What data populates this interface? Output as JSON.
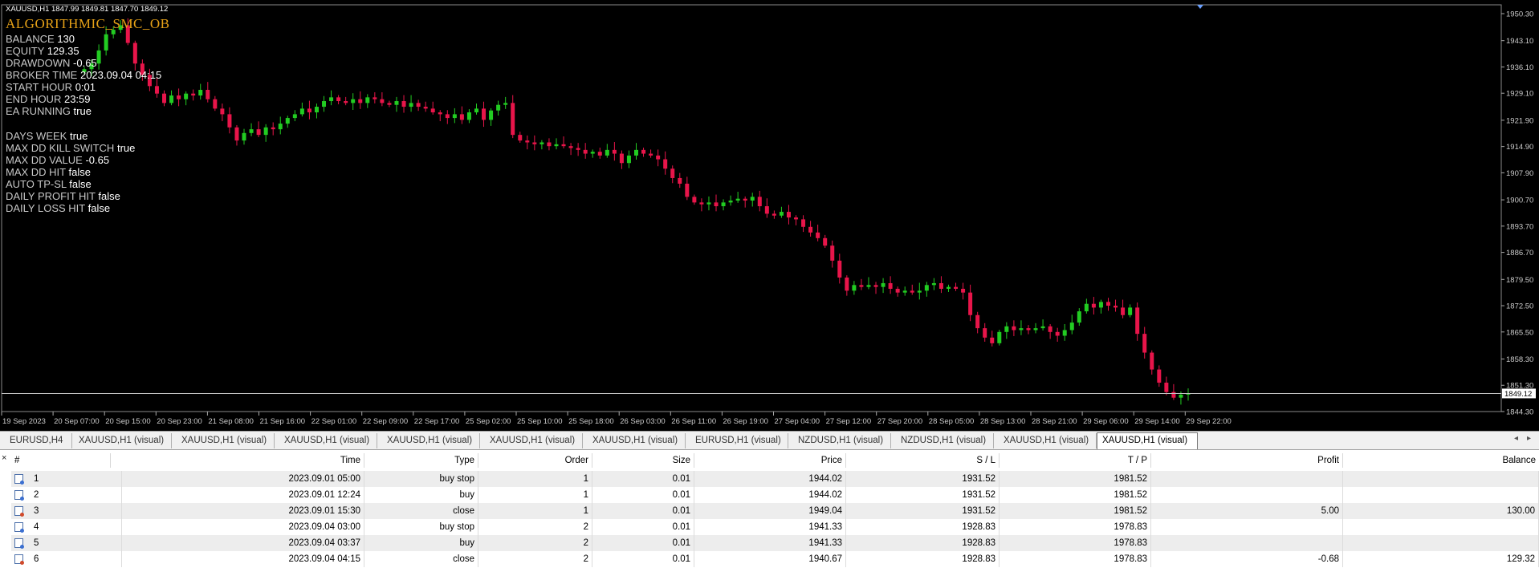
{
  "chart": {
    "symbol_info": "XAUUSD,H1  1847.99 1849.81 1847.70 1849.12",
    "ea_name": "ALGORITHMIC_SMC_OB",
    "current_price": "1849.12",
    "price_axis": [
      "1950.30",
      "1943.10",
      "1936.10",
      "1929.10",
      "1921.90",
      "1914.90",
      "1907.90",
      "1900.70",
      "1893.70",
      "1886.70",
      "1879.50",
      "1872.50",
      "1865.50",
      "1858.30",
      "1851.30",
      "1844.30"
    ],
    "time_axis": [
      "19 Sep 2023",
      "20 Sep 07:00",
      "20 Sep 15:00",
      "20 Sep 23:00",
      "21 Sep 08:00",
      "21 Sep 16:00",
      "22 Sep 01:00",
      "22 Sep 09:00",
      "22 Sep 17:00",
      "25 Sep 02:00",
      "25 Sep 10:00",
      "25 Sep 18:00",
      "26 Sep 03:00",
      "26 Sep 11:00",
      "26 Sep 19:00",
      "27 Sep 04:00",
      "27 Sep 12:00",
      "27 Sep 20:00",
      "28 Sep 05:00",
      "28 Sep 13:00",
      "28 Sep 21:00",
      "29 Sep 06:00",
      "29 Sep 14:00",
      "29 Sep 22:00"
    ],
    "closes": [
      1935.5,
      1937.0,
      1940.5,
      1944.8,
      1946.0,
      1947.2,
      1942.5,
      1937.0,
      1934.0,
      1931.0,
      1929.0,
      1926.5,
      1928.5,
      1927.5,
      1929.0,
      1928.5,
      1930.0,
      1927.5,
      1925.0,
      1923.5,
      1920.0,
      1916.5,
      1918.5,
      1919.5,
      1918.0,
      1920.0,
      1919.5,
      1921.0,
      1922.5,
      1923.5,
      1925.0,
      1924.0,
      1925.5,
      1927.0,
      1928.0,
      1927.0,
      1926.5,
      1927.5,
      1926.5,
      1928.0,
      1927.5,
      1926.5,
      1926.0,
      1927.0,
      1925.5,
      1926.5,
      1925.5,
      1925.0,
      1924.0,
      1923.5,
      1922.5,
      1923.5,
      1922.0,
      1924.0,
      1925.0,
      1922.0,
      1924.5,
      1926.0,
      1926.5,
      1918.0,
      1916.5,
      1916.0,
      1915.5,
      1916.0,
      1915.0,
      1915.5,
      1915.0,
      1914.5,
      1914.0,
      1913.0,
      1913.5,
      1912.5,
      1914.0,
      1913.0,
      1910.5,
      1912.5,
      1914.0,
      1913.0,
      1912.5,
      1911.5,
      1909.0,
      1906.5,
      1905.0,
      1901.5,
      1900.0,
      1899.5,
      1900.0,
      1899.0,
      1900.0,
      1900.5,
      1901.0,
      1900.5,
      1901.5,
      1899.0,
      1897.0,
      1896.5,
      1897.5,
      1896.0,
      1895.5,
      1893.5,
      1892.0,
      1890.5,
      1888.5,
      1884.5,
      1880.0,
      1876.5,
      1878.0,
      1877.5,
      1878.0,
      1877.5,
      1878.5,
      1877.0,
      1876.0,
      1876.5,
      1876.0,
      1876.5,
      1878.0,
      1878.5,
      1877.0,
      1877.5,
      1877.0,
      1876.0,
      1870.0,
      1866.5,
      1864.0,
      1862.5,
      1865.5,
      1867.0,
      1866.0,
      1866.5,
      1866.0,
      1866.5,
      1867.0,
      1865.5,
      1864.5,
      1866.0,
      1868.0,
      1871.0,
      1873.0,
      1872.0,
      1873.5,
      1872.5,
      1872.0,
      1870.0,
      1872.0,
      1865.0,
      1860.0,
      1855.5,
      1852.0,
      1849.5,
      1848.0,
      1848.8,
      1849.12
    ],
    "ea_panel": {
      "balance_label": "BALANCE",
      "balance": "130",
      "equity_label": "EQUITY",
      "equity": "129.35",
      "drawdown_label": "DRAWDOWN",
      "drawdown": "-0.65",
      "broker_time_label": "BROKER TIME",
      "broker_time": "2023.09.04 04:15",
      "start_hour_label": "START HOUR",
      "start_hour": "0:01",
      "end_hour_label": "END HOUR",
      "end_hour": "23:59",
      "ea_running_label": "EA RUNNING",
      "ea_running": "true",
      "days_week_label": "DAYS WEEK",
      "days_week": "true",
      "max_dd_kill_label": "MAX DD KILL SWITCH",
      "max_dd_kill": "true",
      "max_dd_value_label": "MAX DD VALUE",
      "max_dd_value": "-0.65",
      "max_dd_hit_label": "MAX DD HIT",
      "max_dd_hit": "false",
      "auto_tpsl_label": "AUTO TP-SL",
      "auto_tpsl": "false",
      "daily_profit_label": "DAILY PROFIT HIT",
      "daily_profit": "false",
      "daily_loss_label": "DAILY LOSS HIT",
      "daily_loss": "false"
    },
    "colors": {
      "bull": "#22cc22",
      "bear": "#e8154a",
      "background": "#000000",
      "ea_title": "#e6a117"
    }
  },
  "tabs": [
    "EURUSD,H4",
    "XAUUSD,H1 (visual)",
    "XAUUSD,H1 (visual)",
    "XAUUSD,H1 (visual)",
    "XAUUSD,H1 (visual)",
    "XAUUSD,H1 (visual)",
    "XAUUSD,H1 (visual)",
    "EURUSD,H1 (visual)",
    "NZDUSD,H1 (visual)",
    "NZDUSD,H1 (visual)",
    "XAUUSD,H1 (visual)",
    "XAUUSD,H1 (visual)"
  ],
  "tab_arrows": {
    "left": "◂",
    "right": "▸"
  },
  "grid": {
    "close": "×",
    "headers": [
      "#",
      "Time",
      "Type",
      "Order",
      "Size",
      "Price",
      "S / L",
      "T / P",
      "Profit",
      "Balance"
    ],
    "rows": [
      {
        "n": "1",
        "time": "2023.09.01 05:00",
        "type": "buy stop",
        "order": "1",
        "size": "0.01",
        "price": "1944.02",
        "sl": "1931.52",
        "tp": "1981.52",
        "profit": "",
        "balance": ""
      },
      {
        "n": "2",
        "time": "2023.09.01 12:24",
        "type": "buy",
        "order": "1",
        "size": "0.01",
        "price": "1944.02",
        "sl": "1931.52",
        "tp": "1981.52",
        "profit": "",
        "balance": ""
      },
      {
        "n": "3",
        "time": "2023.09.01 15:30",
        "type": "close",
        "order": "1",
        "size": "0.01",
        "price": "1949.04",
        "sl": "1931.52",
        "tp": "1981.52",
        "profit": "5.00",
        "balance": "130.00"
      },
      {
        "n": "4",
        "time": "2023.09.04 03:00",
        "type": "buy stop",
        "order": "2",
        "size": "0.01",
        "price": "1941.33",
        "sl": "1928.83",
        "tp": "1978.83",
        "profit": "",
        "balance": ""
      },
      {
        "n": "5",
        "time": "2023.09.04 03:37",
        "type": "buy",
        "order": "2",
        "size": "0.01",
        "price": "1941.33",
        "sl": "1928.83",
        "tp": "1978.83",
        "profit": "",
        "balance": ""
      },
      {
        "n": "6",
        "time": "2023.09.04 04:15",
        "type": "close",
        "order": "2",
        "size": "0.01",
        "price": "1940.67",
        "sl": "1928.83",
        "tp": "1978.83",
        "profit": "-0.68",
        "balance": "129.32"
      }
    ]
  }
}
